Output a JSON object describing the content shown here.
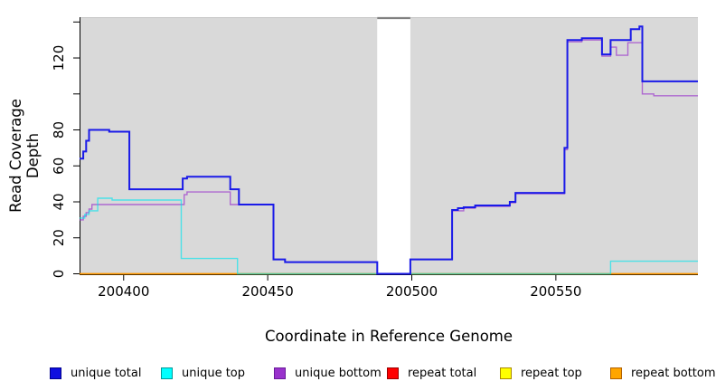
{
  "chart_data": {
    "type": "line",
    "step": true,
    "title": "",
    "xlabel": "Coordinate in Reference Genome",
    "ylabel": "Read Coverage Depth",
    "xlim": [
      200384.7,
      200599.3
    ],
    "ylim": [
      0,
      140
    ],
    "grid": false,
    "panel_bg": "#D9D9D9",
    "panel_top_edge": "#C4C4C4",
    "axis_color": "#000000",
    "x_ticks": [
      {
        "v": 200400,
        "label": "200400"
      },
      {
        "v": 200450,
        "label": "200450"
      },
      {
        "v": 200500,
        "label": "200500"
      },
      {
        "v": 200550,
        "label": "200550"
      }
    ],
    "y_ticks": [
      {
        "v": 0,
        "label": "0"
      },
      {
        "v": 20,
        "label": "20"
      },
      {
        "v": 40,
        "label": "40"
      },
      {
        "v": 60,
        "label": "60"
      },
      {
        "v": 80,
        "label": "80"
      },
      {
        "v": 100,
        "label": ""
      },
      {
        "v": 120,
        "label": "120"
      },
      {
        "v": 140,
        "label": ""
      }
    ],
    "missing_region": {
      "x_start": 200488,
      "x_end": 200499.5,
      "fill": "#FFFFFF",
      "cap_color": "#7F7F7F"
    },
    "series": [
      {
        "name": "repeat total",
        "color": "#DD0000",
        "width": 1.2,
        "opacity": 1,
        "points": [
          [
            200384.7,
            0
          ]
        ]
      },
      {
        "name": "repeat top",
        "color": "#FFFF00",
        "width": 1.2,
        "opacity": 1,
        "points": [
          [
            200384.7,
            0
          ]
        ]
      },
      {
        "name": "repeat bottom",
        "color": "#FF9900",
        "width": 1.6,
        "opacity": 1,
        "points": [
          [
            200384.7,
            0
          ]
        ]
      },
      {
        "name": "unique bottom",
        "color": "#9932CC",
        "width": 1.4,
        "opacity": 0.68,
        "points": [
          [
            200384.7,
            30
          ],
          [
            200386,
            32
          ],
          [
            200387,
            34
          ],
          [
            200388,
            36
          ],
          [
            200389,
            38.5
          ],
          [
            200421,
            44
          ],
          [
            200422,
            45.5
          ],
          [
            200437,
            38.5
          ],
          [
            200452,
            8
          ],
          [
            200456,
            6.5
          ],
          [
            200488,
            0
          ],
          [
            200499.5,
            8
          ],
          [
            200514,
            35
          ],
          [
            200518,
            36.5
          ],
          [
            200522,
            37.5
          ],
          [
            200534,
            39.5
          ],
          [
            200536,
            44.5
          ],
          [
            200553,
            69
          ],
          [
            200554,
            129
          ],
          [
            200559,
            130
          ],
          [
            200566,
            121
          ],
          [
            200569,
            126
          ],
          [
            200571,
            121.5
          ],
          [
            200575,
            128.5
          ],
          [
            200580,
            100
          ],
          [
            200584,
            99
          ]
        ]
      },
      {
        "name": "unique top",
        "color": "#00E5EE",
        "width": 1.4,
        "opacity": 0.65,
        "points": [
          [
            200384.7,
            31
          ],
          [
            200386.5,
            33
          ],
          [
            200388,
            35
          ],
          [
            200391,
            42
          ],
          [
            200396,
            41
          ],
          [
            200420,
            8.5
          ],
          [
            200439.5,
            0
          ],
          [
            200569,
            7
          ]
        ]
      },
      {
        "name": "unique total",
        "color": "#1A1AE8",
        "width": 2,
        "opacity": 1,
        "points": [
          [
            200384.7,
            64
          ],
          [
            200386,
            68
          ],
          [
            200387,
            74
          ],
          [
            200388,
            80
          ],
          [
            200395,
            79
          ],
          [
            200402,
            47
          ],
          [
            200420.5,
            53
          ],
          [
            200422,
            54
          ],
          [
            200437,
            47
          ],
          [
            200440,
            38.5
          ],
          [
            200452,
            8
          ],
          [
            200456,
            6.5
          ],
          [
            200488,
            0
          ],
          [
            200499.5,
            8
          ],
          [
            200514,
            35.5
          ],
          [
            200516,
            36.5
          ],
          [
            200518,
            37
          ],
          [
            200522,
            38
          ],
          [
            200534,
            40
          ],
          [
            200536,
            45
          ],
          [
            200553,
            70
          ],
          [
            200554,
            130
          ],
          [
            200559,
            131
          ],
          [
            200566,
            122
          ],
          [
            200569,
            130
          ],
          [
            200576,
            136
          ],
          [
            200579,
            137.5
          ],
          [
            200580,
            107
          ]
        ]
      }
    ],
    "legend": [
      {
        "label": "unique total",
        "fill": "#0F0FE0",
        "border": "#00008B"
      },
      {
        "label": "unique top",
        "fill": "#00FFFF",
        "border": "#009999"
      },
      {
        "label": "unique bottom",
        "fill": "#9932CC",
        "border": "#6A1B9A"
      },
      {
        "label": "repeat total",
        "fill": "#FF0000",
        "border": "#990000"
      },
      {
        "label": "repeat top",
        "fill": "#FFFF00",
        "border": "#AA8800"
      },
      {
        "label": "repeat bottom",
        "fill": "#FFA500",
        "border": "#B06000"
      }
    ]
  }
}
